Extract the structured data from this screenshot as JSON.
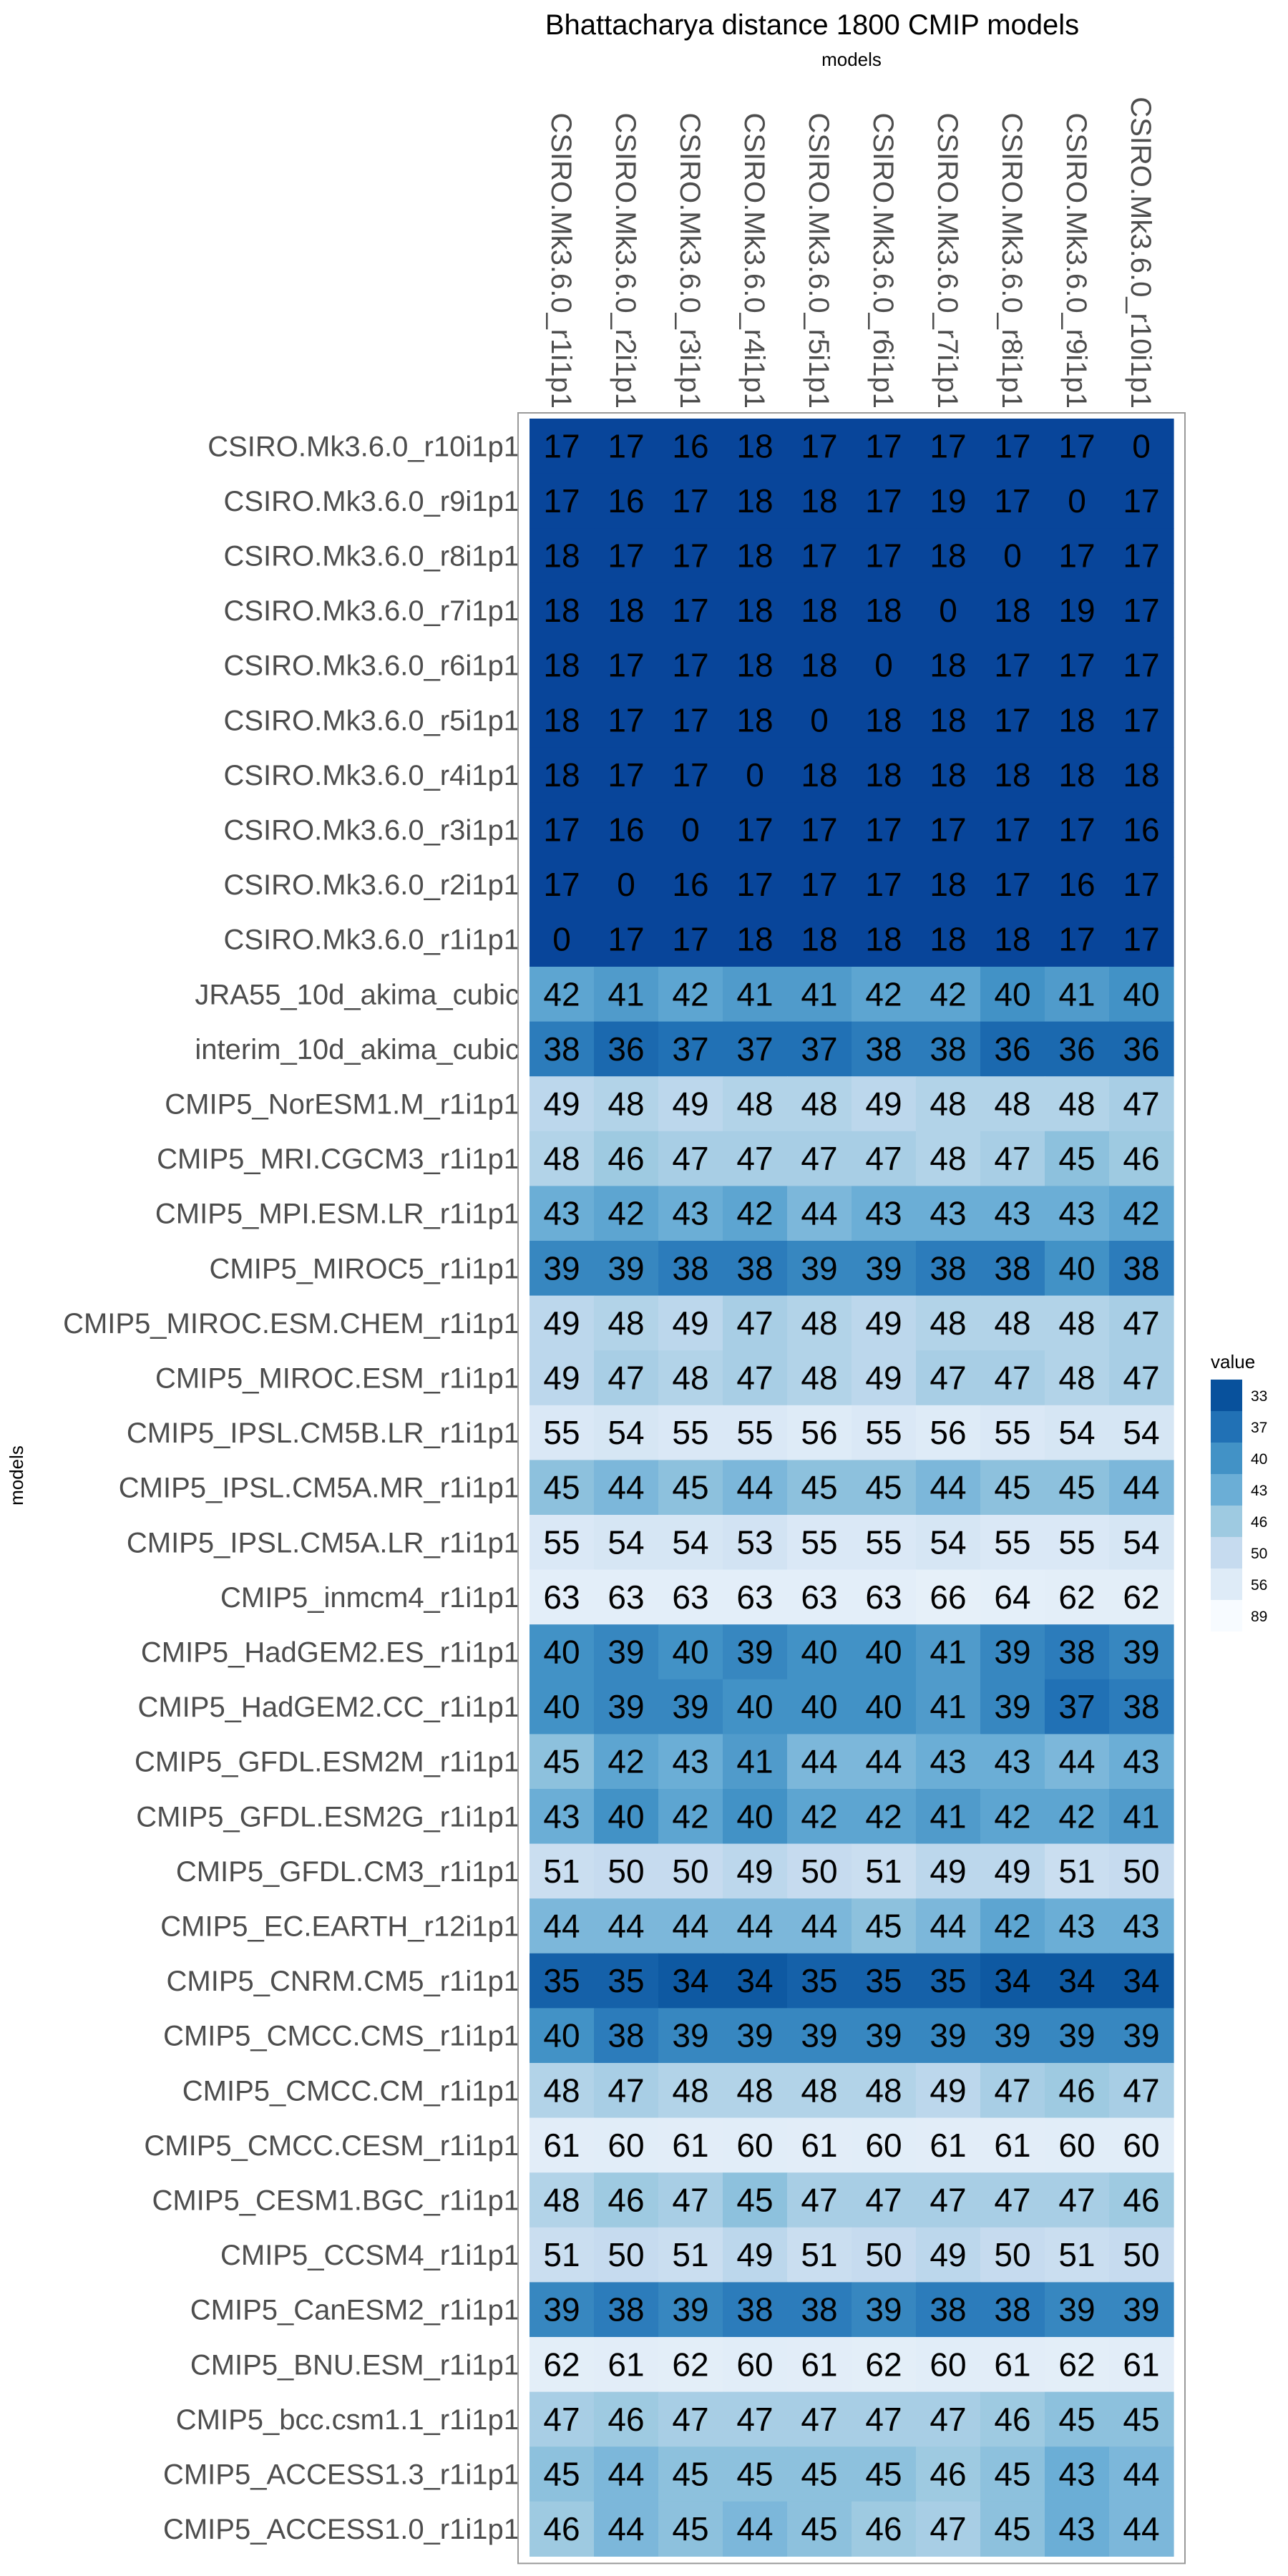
{
  "chart_data": {
    "type": "heatmap",
    "title": "Bhattacharya distance 1800 CMIP models",
    "xlabel": "models",
    "ylabel": "models",
    "x_categories": [
      "CSIRO.Mk3.6.0_r1i1p1",
      "CSIRO.Mk3.6.0_r2i1p1",
      "CSIRO.Mk3.6.0_r3i1p1",
      "CSIRO.Mk3.6.0_r4i1p1",
      "CSIRO.Mk3.6.0_r5i1p1",
      "CSIRO.Mk3.6.0_r6i1p1",
      "CSIRO.Mk3.6.0_r7i1p1",
      "CSIRO.Mk3.6.0_r8i1p1",
      "CSIRO.Mk3.6.0_r9i1p1",
      "CSIRO.Mk3.6.0_r10i1p1"
    ],
    "y_categories": [
      "CSIRO.Mk3.6.0_r10i1p1",
      "CSIRO.Mk3.6.0_r9i1p1",
      "CSIRO.Mk3.6.0_r8i1p1",
      "CSIRO.Mk3.6.0_r7i1p1",
      "CSIRO.Mk3.6.0_r6i1p1",
      "CSIRO.Mk3.6.0_r5i1p1",
      "CSIRO.Mk3.6.0_r4i1p1",
      "CSIRO.Mk3.6.0_r3i1p1",
      "CSIRO.Mk3.6.0_r2i1p1",
      "CSIRO.Mk3.6.0_r1i1p1",
      "JRA55_10d_akima_cubic",
      "interim_10d_akima_cubic",
      "CMIP5_NorESM1.M_r1i1p1",
      "CMIP5_MRI.CGCM3_r1i1p1",
      "CMIP5_MPI.ESM.LR_r1i1p1",
      "CMIP5_MIROC5_r1i1p1",
      "CMIP5_MIROC.ESM.CHEM_r1i1p1",
      "CMIP5_MIROC.ESM_r1i1p1",
      "CMIP5_IPSL.CM5B.LR_r1i1p1",
      "CMIP5_IPSL.CM5A.MR_r1i1p1",
      "CMIP5_IPSL.CM5A.LR_r1i1p1",
      "CMIP5_inmcm4_r1i1p1",
      "CMIP5_HadGEM2.ES_r1i1p1",
      "CMIP5_HadGEM2.CC_r1i1p1",
      "CMIP5_GFDL.ESM2M_r1i1p1",
      "CMIP5_GFDL.ESM2G_r1i1p1",
      "CMIP5_GFDL.CM3_r1i1p1",
      "CMIP5_EC.EARTH_r12i1p1",
      "CMIP5_CNRM.CM5_r1i1p1",
      "CMIP5_CMCC.CMS_r1i1p1",
      "CMIP5_CMCC.CM_r1i1p1",
      "CMIP5_CMCC.CESM_r1i1p1",
      "CMIP5_CESM1.BGC_r1i1p1",
      "CMIP5_CCSM4_r1i1p1",
      "CMIP5_CanESM2_r1i1p1",
      "CMIP5_BNU.ESM_r1i1p1",
      "CMIP5_bcc.csm1.1_r1i1p1",
      "CMIP5_ACCESS1.3_r1i1p1",
      "CMIP5_ACCESS1.0_r1i1p1"
    ],
    "values": [
      [
        17,
        17,
        16,
        18,
        17,
        17,
        17,
        17,
        17,
        0
      ],
      [
        17,
        16,
        17,
        18,
        18,
        17,
        19,
        17,
        0,
        17
      ],
      [
        18,
        17,
        17,
        18,
        17,
        17,
        18,
        0,
        17,
        17
      ],
      [
        18,
        18,
        17,
        18,
        18,
        18,
        0,
        18,
        19,
        17
      ],
      [
        18,
        17,
        17,
        18,
        18,
        0,
        18,
        17,
        17,
        17
      ],
      [
        18,
        17,
        17,
        18,
        0,
        18,
        18,
        17,
        18,
        17
      ],
      [
        18,
        17,
        17,
        0,
        18,
        18,
        18,
        18,
        18,
        18
      ],
      [
        17,
        16,
        0,
        17,
        17,
        17,
        17,
        17,
        17,
        16
      ],
      [
        17,
        0,
        16,
        17,
        17,
        17,
        18,
        17,
        16,
        17
      ],
      [
        0,
        17,
        17,
        18,
        18,
        18,
        18,
        18,
        17,
        17
      ],
      [
        42,
        41,
        42,
        41,
        41,
        42,
        42,
        40,
        41,
        40
      ],
      [
        38,
        36,
        37,
        37,
        37,
        38,
        38,
        36,
        36,
        36
      ],
      [
        49,
        48,
        49,
        48,
        48,
        49,
        48,
        48,
        48,
        47
      ],
      [
        48,
        46,
        47,
        47,
        47,
        47,
        48,
        47,
        45,
        46
      ],
      [
        43,
        42,
        43,
        42,
        44,
        43,
        43,
        43,
        43,
        42
      ],
      [
        39,
        39,
        38,
        38,
        39,
        39,
        38,
        38,
        40,
        38
      ],
      [
        49,
        48,
        49,
        47,
        48,
        49,
        48,
        48,
        48,
        47
      ],
      [
        49,
        47,
        48,
        47,
        48,
        49,
        47,
        47,
        48,
        47
      ],
      [
        55,
        54,
        55,
        55,
        56,
        55,
        56,
        55,
        54,
        54
      ],
      [
        45,
        44,
        45,
        44,
        45,
        45,
        44,
        45,
        45,
        44
      ],
      [
        55,
        54,
        54,
        53,
        55,
        55,
        54,
        55,
        55,
        54
      ],
      [
        63,
        63,
        63,
        63,
        63,
        63,
        66,
        64,
        62,
        62
      ],
      [
        40,
        39,
        40,
        39,
        40,
        40,
        41,
        39,
        38,
        39
      ],
      [
        40,
        39,
        39,
        40,
        40,
        40,
        41,
        39,
        37,
        38
      ],
      [
        45,
        42,
        43,
        41,
        44,
        44,
        43,
        43,
        44,
        43
      ],
      [
        43,
        40,
        42,
        40,
        42,
        42,
        41,
        42,
        42,
        41
      ],
      [
        51,
        50,
        50,
        49,
        50,
        51,
        49,
        49,
        51,
        50
      ],
      [
        44,
        44,
        44,
        44,
        44,
        45,
        44,
        42,
        43,
        43
      ],
      [
        35,
        35,
        34,
        34,
        35,
        35,
        35,
        34,
        34,
        34
      ],
      [
        40,
        38,
        39,
        39,
        39,
        39,
        39,
        39,
        39,
        39
      ],
      [
        48,
        47,
        48,
        48,
        48,
        48,
        49,
        47,
        46,
        47
      ],
      [
        61,
        60,
        61,
        60,
        61,
        60,
        61,
        61,
        60,
        60
      ],
      [
        48,
        46,
        47,
        45,
        47,
        47,
        47,
        47,
        47,
        46
      ],
      [
        51,
        50,
        51,
        49,
        51,
        50,
        49,
        50,
        51,
        50
      ],
      [
        39,
        38,
        39,
        38,
        38,
        39,
        38,
        38,
        39,
        39
      ],
      [
        62,
        61,
        62,
        60,
        61,
        62,
        60,
        61,
        62,
        61
      ],
      [
        47,
        46,
        47,
        47,
        47,
        47,
        47,
        46,
        45,
        45
      ],
      [
        45,
        44,
        45,
        45,
        45,
        45,
        46,
        45,
        43,
        44
      ],
      [
        46,
        44,
        45,
        44,
        45,
        46,
        47,
        45,
        43,
        44
      ]
    ],
    "legend": {
      "title": "value",
      "labels": [
        "33",
        "37",
        "40",
        "43",
        "46",
        "50",
        "56",
        "89"
      ],
      "colors": [
        "#08519c",
        "#2171b5",
        "#4292c6",
        "#6baed6",
        "#9ecae1",
        "#c6dbef",
        "#deebf7",
        "#f7fbff"
      ],
      "placement": "right"
    },
    "colors": {
      "small_values": "#08459a",
      "panel_border": "#999999"
    }
  }
}
